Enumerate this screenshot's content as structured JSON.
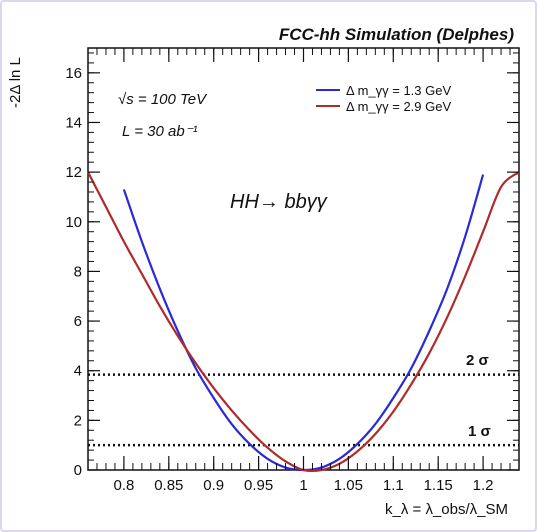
{
  "chart_data": {
    "type": "line",
    "title": "FCC-hh Simulation (Delphes)",
    "xlabel": "k_λ = λ_obs/λ_SM",
    "ylabel": "-2Δ ln L",
    "xlim": [
      0.76,
      1.24
    ],
    "ylim": [
      0,
      17
    ],
    "x_ticks": [
      "0.8",
      "0.85",
      "0.9",
      "0.95",
      "1",
      "1.05",
      "1.1",
      "1.15",
      "1.2"
    ],
    "y_ticks": [
      "0",
      "2",
      "4",
      "6",
      "8",
      "10",
      "12",
      "14",
      "16"
    ],
    "annotations": {
      "energy": "√s = 100 TeV",
      "lumi": "L = 30 ab⁻¹",
      "process": "HH→ bbγγ",
      "sigma2": "2 σ",
      "sigma1": "1 σ"
    },
    "hlines": [
      {
        "y": 3.84,
        "label": "2 σ",
        "style": "dotted"
      },
      {
        "y": 1.0,
        "label": "1 σ",
        "style": "dotted"
      }
    ],
    "series": [
      {
        "name": "Δ m_γγ = 1.3 GeV",
        "color": "#2a2ad8",
        "x": [
          0.8,
          0.82,
          0.84,
          0.86,
          0.88,
          0.9,
          0.92,
          0.94,
          0.96,
          0.98,
          1.0,
          1.02,
          1.04,
          1.06,
          1.08,
          1.1,
          1.12,
          1.14,
          1.16,
          1.18,
          1.2
        ],
        "y": [
          11.3,
          9.2,
          7.3,
          5.6,
          4.1,
          2.9,
          1.85,
          1.05,
          0.45,
          0.1,
          0.0,
          0.1,
          0.45,
          1.05,
          1.85,
          2.9,
          4.1,
          5.6,
          7.3,
          9.4,
          11.9
        ]
      },
      {
        "name": "Δ m_γγ = 2.9 GeV",
        "color": "#b02a2a",
        "x": [
          0.76,
          0.78,
          0.8,
          0.82,
          0.84,
          0.86,
          0.88,
          0.9,
          0.92,
          0.94,
          0.96,
          0.98,
          1.0,
          1.02,
          1.04,
          1.06,
          1.08,
          1.1,
          1.12,
          1.14,
          1.16,
          1.18,
          1.2,
          1.22,
          1.24
        ],
        "y": [
          12.0,
          10.6,
          9.2,
          7.9,
          6.6,
          5.4,
          4.3,
          3.3,
          2.4,
          1.6,
          0.9,
          0.35,
          0.0,
          0.0,
          0.25,
          0.75,
          1.45,
          2.35,
          3.45,
          4.7,
          6.15,
          7.8,
          9.6,
          11.4,
          12.0
        ]
      }
    ],
    "legend": {
      "position": "top-right"
    }
  },
  "colors": {
    "frame_border": "#dcd6ee",
    "axis": "#111111"
  }
}
